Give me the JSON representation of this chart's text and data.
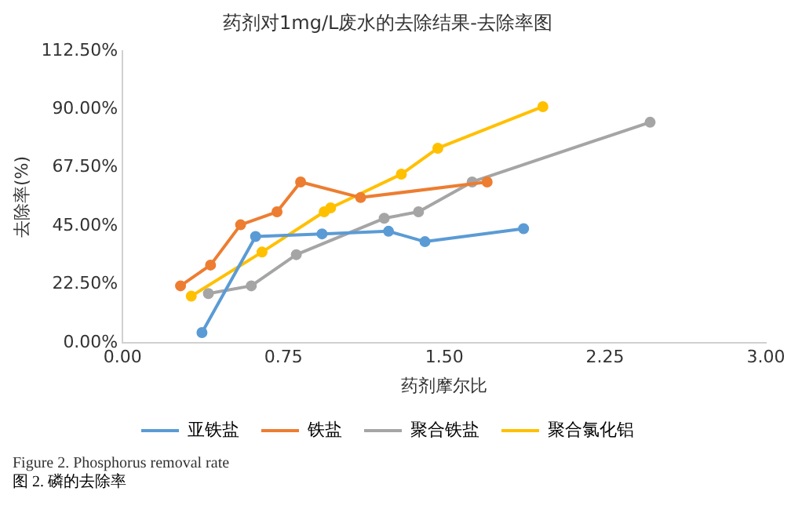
{
  "chart_data": {
    "type": "line",
    "title": "药剂对1mg/L废水的去除结果-去除率图",
    "xlabel": "药剂摩尔比",
    "ylabel": "去除率(%)",
    "xlim": [
      0,
      3
    ],
    "xticks": [
      {
        "value": 0,
        "label": "0.00"
      },
      {
        "value": 0.75,
        "label": "0.75"
      },
      {
        "value": 1.5,
        "label": "1.50"
      },
      {
        "value": 2.25,
        "label": "2.25"
      },
      {
        "value": 3,
        "label": "3.00"
      }
    ],
    "ylim": [
      0,
      112.5
    ],
    "yticks": [
      {
        "value": 0,
        "label": "0.00%"
      },
      {
        "value": 22.5,
        "label": "22.50%"
      },
      {
        "value": 45,
        "label": "45.00%"
      },
      {
        "value": 67.5,
        "label": "67.50%"
      },
      {
        "value": 90,
        "label": "90.00%"
      },
      {
        "value": 112.5,
        "label": "112.50%"
      }
    ],
    "grid": false,
    "legend": "bottom",
    "marker": "circle",
    "line_style": "solid",
    "series": [
      {
        "name": "亚铁盐",
        "color": "#5b9bd5",
        "x": [
          0.37,
          0.62,
          0.93,
          1.24,
          1.41,
          1.87
        ],
        "values": [
          4,
          41,
          42,
          43,
          39,
          44
        ]
      },
      {
        "name": "铁盐",
        "color": "#ed7d31",
        "x": [
          0.27,
          0.41,
          0.55,
          0.72,
          0.83,
          1.11,
          1.7
        ],
        "values": [
          22,
          30,
          45.5,
          50.5,
          62,
          56,
          62
        ]
      },
      {
        "name": "聚合铁盐",
        "color": "#a5a5a5",
        "x": [
          0.4,
          0.6,
          0.81,
          1.22,
          1.38,
          1.63,
          2.46
        ],
        "values": [
          19,
          22,
          34,
          48,
          50.5,
          62,
          85
        ]
      },
      {
        "name": "聚合氯化铝",
        "color": "#ffc000",
        "x": [
          0.32,
          0.65,
          0.94,
          0.97,
          1.3,
          1.47,
          1.96
        ],
        "values": [
          18,
          35,
          50.5,
          52,
          65,
          75,
          91
        ]
      }
    ],
    "annotations": [
      "Figure 2. Phosphorus removal rate",
      "图 2. 磷的去除率"
    ]
  }
}
